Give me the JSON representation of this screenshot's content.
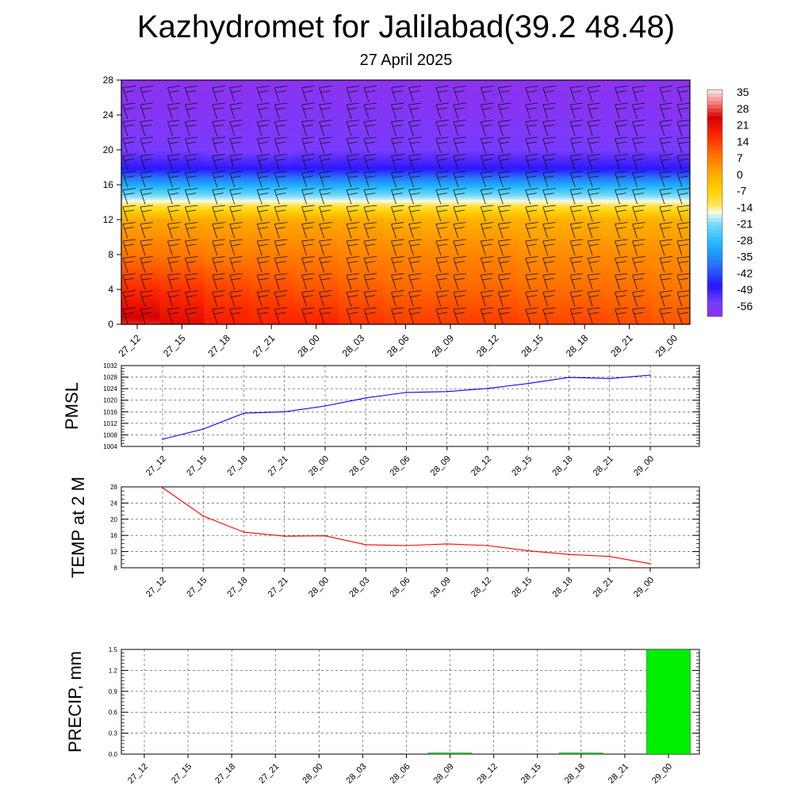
{
  "header": {
    "title": "Kazhydromet for Jalilabad(39.2 48.48)",
    "subtitle": "27 April 2025"
  },
  "time_labels": [
    "27_12",
    "27_15",
    "27_18",
    "27_21",
    "28_00",
    "28_03",
    "28_06",
    "28_09",
    "28_12",
    "28_15",
    "28_18",
    "28_21",
    "29_00"
  ],
  "chart_data": [
    {
      "type": "heatmap",
      "title": "Kazhydromet for Jalilabad(39.2 48.48)",
      "subtitle": "27 April 2025",
      "x": [
        "27_12",
        "27_15",
        "27_18",
        "27_21",
        "28_00",
        "28_03",
        "28_06",
        "28_09",
        "28_12",
        "28_15",
        "28_18",
        "28_21",
        "29_00"
      ],
      "y_ticks": [
        0,
        4,
        8,
        12,
        16,
        20,
        24,
        28
      ],
      "ylim": [
        0,
        28
      ],
      "colorbar_labels": [
        "35",
        "28",
        "21",
        "14",
        "7",
        "0",
        "-7",
        "-14",
        "-21",
        "-28",
        "-35",
        "-42",
        "-49",
        "-56"
      ],
      "colorbar_range": [
        -60,
        38
      ],
      "profile_levels": [
        0,
        4,
        8,
        12,
        14,
        16,
        18,
        20,
        24,
        28
      ],
      "profile_values": [
        [
          28,
          18,
          9,
          2,
          -14,
          -30,
          -48,
          -54,
          -58,
          -60
        ],
        [
          24,
          17,
          9,
          2,
          -14,
          -30,
          -48,
          -54,
          -58,
          -60
        ],
        [
          20,
          15,
          8,
          2,
          -14,
          -30,
          -48,
          -55,
          -58,
          -60
        ],
        [
          19,
          14,
          8,
          2,
          -14,
          -30,
          -48,
          -55,
          -57,
          -60
        ],
        [
          19,
          13,
          8,
          2,
          -14,
          -30,
          -48,
          -54,
          -57,
          -60
        ],
        [
          17,
          12,
          7,
          2,
          -14,
          -30,
          -48,
          -54,
          -57,
          -60
        ],
        [
          16,
          11,
          7,
          1,
          -14,
          -30,
          -48,
          -54,
          -57,
          -60
        ],
        [
          16,
          11,
          7,
          1,
          -14,
          -30,
          -48,
          -54,
          -58,
          -60
        ],
        [
          16,
          11,
          7,
          1,
          -14,
          -30,
          -48,
          -54,
          -58,
          -60
        ],
        [
          15,
          10,
          6,
          1,
          -14,
          -30,
          -48,
          -54,
          -58,
          -60
        ],
        [
          15,
          10,
          6,
          1,
          -14,
          -30,
          -48,
          -54,
          -58,
          -60
        ],
        [
          14,
          10,
          6,
          1,
          -14,
          -30,
          -48,
          -54,
          -58,
          -60
        ],
        [
          13,
          9,
          6,
          1,
          -14,
          -30,
          -48,
          -54,
          -58,
          -60
        ]
      ],
      "grid": false
    },
    {
      "type": "line",
      "ylabel": "PMSL",
      "x": [
        "27_12",
        "27_15",
        "27_18",
        "27_21",
        "28_00",
        "28_03",
        "28_06",
        "28_09",
        "28_12",
        "28_15",
        "28_18",
        "28_21",
        "29_00"
      ],
      "values": [
        1006.5,
        1010.0,
        1015.5,
        1016.0,
        1018.0,
        1020.8,
        1022.7,
        1023.0,
        1024.1,
        1025.8,
        1027.9,
        1027.5,
        1028.7
      ],
      "ylim": [
        1004,
        1032
      ],
      "y_ticks": [
        1004,
        1008,
        1012,
        1016,
        1020,
        1024,
        1028,
        1032
      ],
      "color": "#0000ff",
      "grid": true
    },
    {
      "type": "line",
      "ylabel": "TEMP at 2 M",
      "x": [
        "27_12",
        "27_15",
        "27_18",
        "27_21",
        "28_00",
        "28_03",
        "28_06",
        "28_09",
        "28_12",
        "28_15",
        "28_18",
        "28_21",
        "29_00"
      ],
      "values": [
        27.8,
        20.8,
        16.8,
        15.8,
        15.9,
        13.7,
        13.5,
        13.9,
        13.5,
        12.2,
        11.3,
        10.8,
        9.0
      ],
      "ylim": [
        8,
        28
      ],
      "y_ticks": [
        8,
        12,
        16,
        20,
        24,
        28
      ],
      "color": "#ff0000",
      "grid": true
    },
    {
      "type": "bar",
      "ylabel": "PRECIP, mm",
      "x": [
        "27_12",
        "27_15",
        "27_18",
        "27_21",
        "28_00",
        "28_03",
        "28_06",
        "28_09",
        "28_12",
        "28_15",
        "28_18",
        "28_21",
        "29_00"
      ],
      "values": [
        0,
        0,
        0,
        0,
        0,
        0,
        0,
        0.01,
        0,
        0,
        0.01,
        0,
        1.5
      ],
      "ylim": [
        0,
        1.5
      ],
      "y_ticks": [
        "0.0",
        "0.3",
        "0.6",
        "0.9",
        "1.2",
        "1.5"
      ],
      "color": "#00ee00",
      "grid": true
    }
  ]
}
